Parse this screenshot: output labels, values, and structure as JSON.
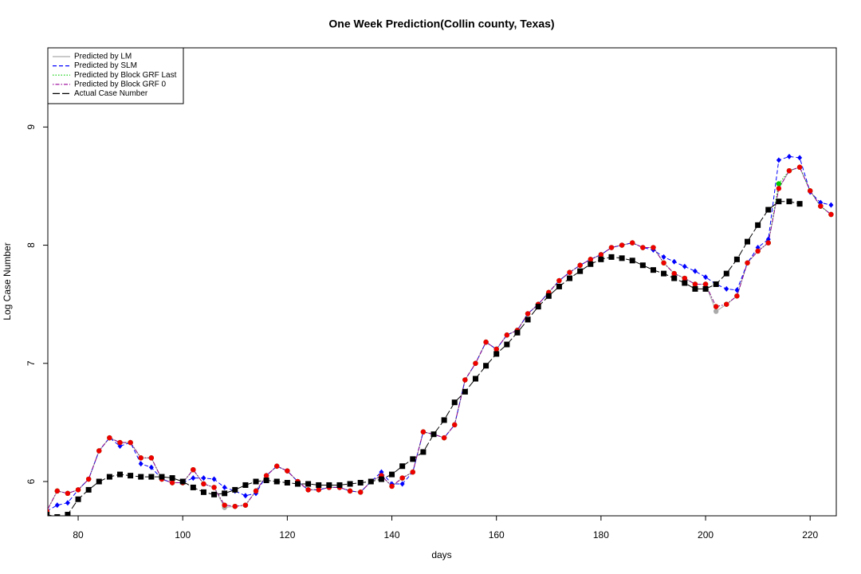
{
  "chart_data": {
    "type": "line",
    "title": "One Week Prediction(Collin county, Texas)",
    "x_label": "days",
    "y_label": "Log Case Number",
    "xlim": [
      74.2,
      225
    ],
    "ylim": [
      5.71,
      9.67
    ],
    "xticks": [
      80,
      100,
      120,
      140,
      160,
      180,
      200,
      220
    ],
    "yticks": [
      6,
      7,
      8,
      9
    ],
    "legend": "top-left",
    "x": [
      74,
      76,
      78,
      80,
      82,
      84,
      86,
      88,
      90,
      92,
      94,
      96,
      98,
      100,
      102,
      104,
      106,
      108,
      110,
      112,
      114,
      116,
      118,
      120,
      122,
      124,
      126,
      128,
      130,
      132,
      134,
      136,
      138,
      140,
      142,
      144,
      146,
      148,
      150,
      152,
      154,
      156,
      158,
      160,
      162,
      164,
      166,
      168,
      170,
      172,
      174,
      176,
      178,
      180,
      182,
      184,
      186,
      188,
      190,
      192,
      194,
      196,
      198,
      200,
      202,
      204,
      206,
      208,
      210,
      212,
      214,
      216,
      218,
      220,
      222,
      224
    ],
    "series": [
      {
        "name": "Predicted by LM",
        "color": "#aaaaaa",
        "line_style": "solid",
        "marker": "circle",
        "values": [
          5.75,
          5.92,
          5.9,
          5.93,
          6.02,
          6.26,
          6.37,
          6.33,
          6.33,
          6.2,
          6.2,
          6.02,
          5.99,
          5.99,
          6.1,
          5.98,
          5.95,
          5.78,
          5.79,
          5.8,
          5.92,
          6.05,
          6.13,
          6.09,
          6.0,
          5.93,
          5.93,
          5.95,
          5.95,
          5.92,
          5.91,
          6.0,
          6.05,
          5.96,
          6.03,
          6.08,
          6.42,
          6.4,
          6.37,
          6.48,
          6.86,
          7.0,
          7.18,
          7.12,
          7.24,
          7.28,
          7.42,
          7.5,
          7.6,
          7.7,
          7.77,
          7.83,
          7.88,
          7.92,
          7.98,
          8.0,
          8.02,
          7.98,
          7.98,
          7.85,
          7.76,
          7.72,
          7.67,
          7.67,
          7.44,
          7.5,
          7.57,
          7.85,
          7.95,
          8.02,
          8.48,
          8.63,
          8.66,
          8.46,
          8.33,
          8.26
        ]
      },
      {
        "name": "Predicted by SLM",
        "color": "#0000ff",
        "line_style": "dashed",
        "marker": "diamond",
        "values": [
          5.75,
          5.8,
          5.82,
          5.93,
          6.02,
          6.26,
          6.37,
          6.3,
          6.33,
          6.15,
          6.12,
          6.02,
          5.99,
          5.99,
          6.03,
          6.03,
          6.02,
          5.95,
          5.92,
          5.88,
          5.9,
          6.05,
          6.13,
          6.09,
          6.0,
          5.93,
          5.93,
          5.95,
          5.95,
          5.92,
          5.91,
          6.0,
          6.08,
          5.98,
          5.98,
          6.08,
          6.42,
          6.4,
          6.37,
          6.48,
          6.86,
          7.0,
          7.18,
          7.12,
          7.24,
          7.28,
          7.42,
          7.5,
          7.6,
          7.7,
          7.77,
          7.83,
          7.88,
          7.92,
          7.98,
          8.0,
          8.02,
          7.98,
          7.96,
          7.9,
          7.86,
          7.82,
          7.78,
          7.73,
          7.67,
          7.63,
          7.62,
          7.85,
          7.98,
          8.05,
          8.72,
          8.75,
          8.74,
          8.45,
          8.36,
          8.34
        ]
      },
      {
        "name": "Predicted by Block GRF Last",
        "color": "#00cc00",
        "line_style": "dotted",
        "marker": "circle",
        "values": [
          5.75,
          5.92,
          5.9,
          5.93,
          6.02,
          6.26,
          6.37,
          6.33,
          6.33,
          6.2,
          6.2,
          6.02,
          5.99,
          5.99,
          6.1,
          5.98,
          5.95,
          5.8,
          5.79,
          5.8,
          5.92,
          6.05,
          6.13,
          6.09,
          6.0,
          5.93,
          5.93,
          5.95,
          5.95,
          5.92,
          5.91,
          6.0,
          6.05,
          5.96,
          6.03,
          6.08,
          6.42,
          6.4,
          6.37,
          6.48,
          6.86,
          7.0,
          7.18,
          7.12,
          7.24,
          7.28,
          7.42,
          7.5,
          7.6,
          7.7,
          7.77,
          7.83,
          7.88,
          7.92,
          7.98,
          8.0,
          8.02,
          7.98,
          7.98,
          7.85,
          7.76,
          7.72,
          7.67,
          7.67,
          7.48,
          7.5,
          7.57,
          7.85,
          7.95,
          8.02,
          8.52,
          8.63,
          8.66,
          8.46,
          8.33,
          8.26
        ]
      },
      {
        "name": "Predicted by Block GRF 0",
        "color": "#990099",
        "marker_color": "#ee0000",
        "line_style": "dotdash",
        "marker": "circle",
        "values": [
          5.75,
          5.92,
          5.9,
          5.93,
          6.02,
          6.26,
          6.37,
          6.33,
          6.33,
          6.2,
          6.2,
          6.02,
          5.99,
          5.99,
          6.1,
          5.98,
          5.95,
          5.8,
          5.79,
          5.8,
          5.92,
          6.05,
          6.13,
          6.09,
          6.0,
          5.93,
          5.93,
          5.95,
          5.95,
          5.92,
          5.91,
          6.0,
          6.05,
          5.96,
          6.03,
          6.08,
          6.42,
          6.4,
          6.37,
          6.48,
          6.86,
          7.0,
          7.18,
          7.12,
          7.24,
          7.28,
          7.42,
          7.5,
          7.6,
          7.7,
          7.77,
          7.83,
          7.88,
          7.92,
          7.98,
          8.0,
          8.02,
          7.98,
          7.98,
          7.85,
          7.76,
          7.72,
          7.67,
          7.67,
          7.48,
          7.5,
          7.57,
          7.85,
          7.95,
          8.02,
          8.48,
          8.63,
          8.66,
          8.46,
          8.33,
          8.26
        ]
      },
      {
        "name": "Actual Case Number",
        "color": "#000000",
        "line_style": "longdash",
        "marker": "square",
        "values": [
          5.72,
          5.7,
          5.72,
          5.85,
          5.93,
          6.0,
          6.04,
          6.06,
          6.05,
          6.04,
          6.04,
          6.04,
          6.03,
          6.0,
          5.95,
          5.91,
          5.89,
          5.9,
          5.93,
          5.97,
          6.0,
          6.01,
          6.0,
          5.99,
          5.98,
          5.98,
          5.97,
          5.97,
          5.97,
          5.98,
          5.99,
          6.0,
          6.02,
          6.06,
          6.13,
          6.19,
          6.25,
          6.4,
          6.52,
          6.67,
          6.76,
          6.87,
          6.98,
          7.08,
          7.16,
          7.26,
          7.37,
          7.48,
          7.57,
          7.65,
          7.72,
          7.78,
          7.84,
          7.88,
          7.9,
          7.89,
          7.87,
          7.83,
          7.79,
          7.76,
          7.72,
          7.68,
          7.63,
          7.63,
          7.67,
          7.76,
          7.88,
          8.03,
          8.17,
          8.3,
          8.37,
          8.37,
          8.35,
          null,
          null,
          null
        ]
      }
    ]
  }
}
